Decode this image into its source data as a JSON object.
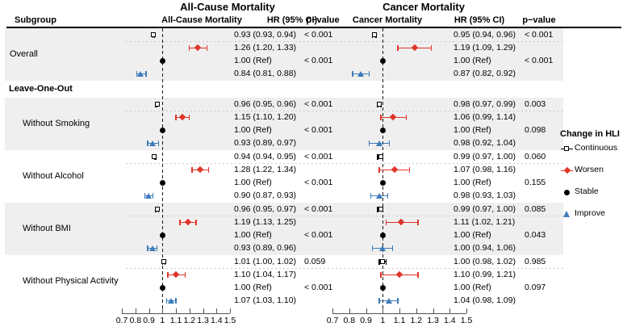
{
  "titles": {
    "left": "All-Cause Mortality",
    "right": "Cancer Mortality"
  },
  "columns": {
    "subgroup": "Subgroup",
    "left_plot": "All-Cause Mortality",
    "left_hr": "HR (95% CI)",
    "left_p": "p−value",
    "right_plot": "Cancer Mortality",
    "right_hr": "HR (95% CI)",
    "right_p": "p−value"
  },
  "section_header": "Leave-One-Out",
  "colors": {
    "worsen": "#e0352b",
    "stable": "#000000",
    "improve": "#3d7ab8",
    "continuous": "#000000",
    "stripe": "#efefef"
  },
  "legend": {
    "title": "Change in HLI",
    "items": [
      {
        "label": "Continuous",
        "marker": "square-open",
        "color": "#000000"
      },
      {
        "label": "Worsen",
        "marker": "diamond",
        "color": "#e0352b"
      },
      {
        "label": "Stable",
        "marker": "circle",
        "color": "#000000"
      },
      {
        "label": "Improve",
        "marker": "triangle",
        "color": "#3d7ab8"
      }
    ]
  },
  "chart_data": {
    "type": "forest",
    "x_axis": {
      "min": 0.7,
      "max": 1.5,
      "ref": 1.0,
      "ticks": [
        "0.7",
        "0.8",
        "0.9",
        "1",
        "1.1",
        "1.2",
        "1.3",
        "1.4",
        "1.5"
      ]
    },
    "panels": [
      "All-Cause Mortality",
      "Cancer Mortality"
    ],
    "groups": [
      {
        "label": "Overall",
        "indent": false,
        "shaded": true,
        "rows": [
          {
            "category": "Continuous",
            "marker": "square-open",
            "color": "#000000",
            "all_cause": {
              "hr": 0.93,
              "lo": 0.93,
              "hi": 0.94,
              "text": "0.93 (0.93, 0.94)",
              "p": "< 0.001"
            },
            "cancer": {
              "hr": 0.95,
              "lo": 0.94,
              "hi": 0.96,
              "text": "0.95 (0.94, 0.96)",
              "p": "< 0.001"
            }
          },
          {
            "category": "Worsen",
            "marker": "diamond",
            "color": "#e0352b",
            "all_cause": {
              "hr": 1.26,
              "lo": 1.2,
              "hi": 1.33,
              "text": "1.26 (1.20, 1.33)",
              "p": ""
            },
            "cancer": {
              "hr": 1.19,
              "lo": 1.09,
              "hi": 1.29,
              "text": "1.19 (1.09, 1.29)",
              "p": ""
            }
          },
          {
            "category": "Stable",
            "marker": "circle",
            "color": "#000000",
            "all_cause": {
              "hr": 1.0,
              "lo": 1.0,
              "hi": 1.0,
              "text": "1.00 (Ref)",
              "p": "< 0.001"
            },
            "cancer": {
              "hr": 1.0,
              "lo": 1.0,
              "hi": 1.0,
              "text": "1.00 (Ref)",
              "p": "< 0.001"
            }
          },
          {
            "category": "Improve",
            "marker": "triangle",
            "color": "#3d7ab8",
            "all_cause": {
              "hr": 0.84,
              "lo": 0.81,
              "hi": 0.88,
              "text": "0.84 (0.81, 0.88)",
              "p": ""
            },
            "cancer": {
              "hr": 0.87,
              "lo": 0.82,
              "hi": 0.92,
              "text": "0.87 (0.82, 0.92)",
              "p": ""
            }
          }
        ]
      },
      {
        "label": "Without Smoking",
        "indent": true,
        "shaded": true,
        "rows": [
          {
            "category": "Continuous",
            "marker": "square-open",
            "color": "#000000",
            "all_cause": {
              "hr": 0.96,
              "lo": 0.95,
              "hi": 0.96,
              "text": "0.96 (0.95, 0.96)",
              "p": "< 0.001"
            },
            "cancer": {
              "hr": 0.98,
              "lo": 0.97,
              "hi": 0.99,
              "text": "0.98 (0.97, 0.99)",
              "p": "0.003"
            }
          },
          {
            "category": "Worsen",
            "marker": "diamond",
            "color": "#e0352b",
            "all_cause": {
              "hr": 1.15,
              "lo": 1.1,
              "hi": 1.2,
              "text": "1.15 (1.10, 1.20)",
              "p": ""
            },
            "cancer": {
              "hr": 1.06,
              "lo": 0.99,
              "hi": 1.14,
              "text": "1.06 (0.99, 1.14)",
              "p": ""
            }
          },
          {
            "category": "Stable",
            "marker": "circle",
            "color": "#000000",
            "all_cause": {
              "hr": 1.0,
              "lo": 1.0,
              "hi": 1.0,
              "text": "1.00 (Ref)",
              "p": "< 0.001"
            },
            "cancer": {
              "hr": 1.0,
              "lo": 1.0,
              "hi": 1.0,
              "text": "1.00 (Ref)",
              "p": "0.098"
            }
          },
          {
            "category": "Improve",
            "marker": "triangle",
            "color": "#3d7ab8",
            "all_cause": {
              "hr": 0.93,
              "lo": 0.89,
              "hi": 0.97,
              "text": "0.93 (0.89, 0.97)",
              "p": ""
            },
            "cancer": {
              "hr": 0.98,
              "lo": 0.92,
              "hi": 1.04,
              "text": "0.98 (0.92, 1.04)",
              "p": ""
            }
          }
        ]
      },
      {
        "label": "Without Alcohol",
        "indent": true,
        "shaded": false,
        "rows": [
          {
            "category": "Continuous",
            "marker": "square-open",
            "color": "#000000",
            "all_cause": {
              "hr": 0.94,
              "lo": 0.94,
              "hi": 0.95,
              "text": "0.94 (0.94, 0.95)",
              "p": "< 0.001"
            },
            "cancer": {
              "hr": 0.99,
              "lo": 0.97,
              "hi": 1.0,
              "text": "0.99 (0.97, 1.00)",
              "p": "0.060"
            }
          },
          {
            "category": "Worsen",
            "marker": "diamond",
            "color": "#e0352b",
            "all_cause": {
              "hr": 1.28,
              "lo": 1.22,
              "hi": 1.34,
              "text": "1.28 (1.22, 1.34)",
              "p": ""
            },
            "cancer": {
              "hr": 1.07,
              "lo": 0.98,
              "hi": 1.16,
              "text": "1.07 (0.98, 1.16)",
              "p": ""
            }
          },
          {
            "category": "Stable",
            "marker": "circle",
            "color": "#000000",
            "all_cause": {
              "hr": 1.0,
              "lo": 1.0,
              "hi": 1.0,
              "text": "1.00 (Ref)",
              "p": "< 0.001"
            },
            "cancer": {
              "hr": 1.0,
              "lo": 1.0,
              "hi": 1.0,
              "text": "1.00 (Ref)",
              "p": "0.155"
            }
          },
          {
            "category": "Improve",
            "marker": "triangle",
            "color": "#3d7ab8",
            "all_cause": {
              "hr": 0.9,
              "lo": 0.87,
              "hi": 0.93,
              "text": "0.90 (0.87, 0.93)",
              "p": ""
            },
            "cancer": {
              "hr": 0.98,
              "lo": 0.93,
              "hi": 1.03,
              "text": "0.98 (0.93, 1.03)",
              "p": ""
            }
          }
        ]
      },
      {
        "label": "Without BMI",
        "indent": true,
        "shaded": true,
        "rows": [
          {
            "category": "Continuous",
            "marker": "square-open",
            "color": "#000000",
            "all_cause": {
              "hr": 0.96,
              "lo": 0.95,
              "hi": 0.97,
              "text": "0.96 (0.95, 0.97)",
              "p": "< 0.001"
            },
            "cancer": {
              "hr": 0.99,
              "lo": 0.97,
              "hi": 1.0,
              "text": "0.99 (0.97, 1.00)",
              "p": "0.085"
            }
          },
          {
            "category": "Worsen",
            "marker": "diamond",
            "color": "#e0352b",
            "all_cause": {
              "hr": 1.19,
              "lo": 1.13,
              "hi": 1.25,
              "text": "1.19 (1.13, 1.25)",
              "p": ""
            },
            "cancer": {
              "hr": 1.11,
              "lo": 1.02,
              "hi": 1.21,
              "text": "1.11 (1.02, 1.21)",
              "p": ""
            }
          },
          {
            "category": "Stable",
            "marker": "circle",
            "color": "#000000",
            "all_cause": {
              "hr": 1.0,
              "lo": 1.0,
              "hi": 1.0,
              "text": "1.00 (Ref)",
              "p": "< 0.001"
            },
            "cancer": {
              "hr": 1.0,
              "lo": 1.0,
              "hi": 1.0,
              "text": "1.00 (Ref)",
              "p": "0.043"
            }
          },
          {
            "category": "Improve",
            "marker": "triangle",
            "color": "#3d7ab8",
            "all_cause": {
              "hr": 0.93,
              "lo": 0.89,
              "hi": 0.96,
              "text": "0.93 (0.89, 0.96)",
              "p": ""
            },
            "cancer": {
              "hr": 1.0,
              "lo": 0.94,
              "hi": 1.06,
              "text": "1.00 (0.94, 1.06)",
              "p": ""
            }
          }
        ]
      },
      {
        "label": "Without Physical Activity",
        "indent": true,
        "shaded": false,
        "rows": [
          {
            "category": "Continuous",
            "marker": "square-open",
            "color": "#000000",
            "all_cause": {
              "hr": 1.01,
              "lo": 1.0,
              "hi": 1.02,
              "text": "1.01 (1.00, 1.02)",
              "p": "0.059"
            },
            "cancer": {
              "hr": 1.0,
              "lo": 0.98,
              "hi": 1.02,
              "text": "1.00 (0.98, 1.02)",
              "p": "0.985"
            }
          },
          {
            "category": "Worsen",
            "marker": "diamond",
            "color": "#e0352b",
            "all_cause": {
              "hr": 1.1,
              "lo": 1.04,
              "hi": 1.17,
              "text": "1.10 (1.04, 1.17)",
              "p": ""
            },
            "cancer": {
              "hr": 1.1,
              "lo": 0.99,
              "hi": 1.21,
              "text": "1.10 (0.99, 1.21)",
              "p": ""
            }
          },
          {
            "category": "Stable",
            "marker": "circle",
            "color": "#000000",
            "all_cause": {
              "hr": 1.0,
              "lo": 1.0,
              "hi": 1.0,
              "text": "1.00 (Ref)",
              "p": "< 0.001"
            },
            "cancer": {
              "hr": 1.0,
              "lo": 1.0,
              "hi": 1.0,
              "text": "1.00 (Ref)",
              "p": "0.097"
            }
          },
          {
            "category": "Improve",
            "marker": "triangle",
            "color": "#3d7ab8",
            "all_cause": {
              "hr": 1.07,
              "lo": 1.03,
              "hi": 1.1,
              "text": "1.07 (1.03, 1.10)",
              "p": ""
            },
            "cancer": {
              "hr": 1.04,
              "lo": 0.98,
              "hi": 1.09,
              "text": "1.04 (0.98, 1.09)",
              "p": ""
            }
          }
        ]
      }
    ]
  }
}
